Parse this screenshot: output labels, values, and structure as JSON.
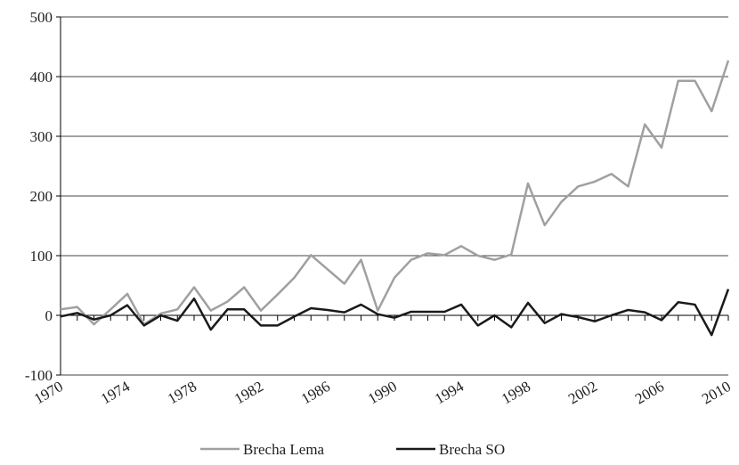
{
  "chart_data": {
    "type": "line",
    "x": [
      1970,
      1971,
      1972,
      1973,
      1974,
      1975,
      1976,
      1977,
      1978,
      1979,
      1980,
      1981,
      1982,
      1983,
      1984,
      1985,
      1986,
      1987,
      1988,
      1989,
      1990,
      1991,
      1992,
      1993,
      1994,
      1995,
      1996,
      1997,
      1998,
      1999,
      2000,
      2001,
      2002,
      2003,
      2004,
      2005,
      2006,
      2007,
      2008,
      2009,
      2010
    ],
    "series": [
      {
        "name": "Brecha Lema",
        "color": "#a0a0a0",
        "values": [
          10,
          14,
          -15,
          10,
          36,
          -15,
          3,
          10,
          47,
          8,
          23,
          47,
          8,
          35,
          63,
          101,
          77,
          53,
          93,
          8,
          63,
          93,
          104,
          101,
          116,
          100,
          93,
          102,
          221,
          151,
          190,
          216,
          224,
          237,
          216,
          320,
          281,
          393,
          393,
          342,
          427
        ]
      },
      {
        "name": "Brecha SO",
        "color": "#1a1a1a",
        "values": [
          -2,
          4,
          -7,
          0,
          17,
          -17,
          0,
          -9,
          28,
          -24,
          10,
          10,
          -17,
          -17,
          -2,
          12,
          9,
          5,
          18,
          2,
          -4,
          6,
          6,
          6,
          18,
          -17,
          0,
          -20,
          21,
          -13,
          2,
          -3,
          -10,
          0,
          9,
          5,
          -8,
          22,
          18,
          -33,
          44
        ]
      }
    ],
    "xlim": [
      1970,
      2010
    ],
    "xticks": [
      1970,
      1974,
      1978,
      1982,
      1986,
      1990,
      1994,
      1998,
      2002,
      2006,
      2010
    ],
    "ylim": [
      -100,
      500
    ],
    "yticks": [
      -100,
      0,
      100,
      200,
      300,
      400,
      500
    ],
    "grid": true,
    "legend": "bottom"
  }
}
